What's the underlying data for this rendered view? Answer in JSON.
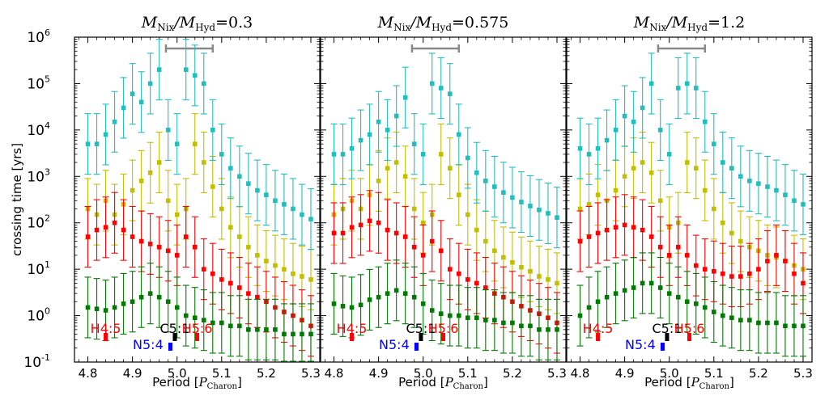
{
  "chart_data": {
    "type": "scatter",
    "ylabel": "crossing time [yrs]",
    "yscale": "log",
    "ylim": [
      0.1,
      1000000
    ],
    "ytick_labels": [
      {
        "base": "10",
        "exp": "-1"
      },
      {
        "base": "10",
        "exp": "0"
      },
      {
        "base": "10",
        "exp": "1"
      },
      {
        "base": "10",
        "exp": "2"
      },
      {
        "base": "10",
        "exp": "3"
      },
      {
        "base": "10",
        "exp": "4"
      },
      {
        "base": "10",
        "exp": "5"
      },
      {
        "base": "10",
        "exp": "6"
      }
    ],
    "xlim": [
      4.77,
      5.32
    ],
    "xticks": [
      4.8,
      4.9,
      5.0,
      5.1,
      5.2,
      5.3
    ],
    "xtick_labels": [
      "4.8",
      "4.9",
      "5.0",
      "5.1",
      "5.2",
      "5.3"
    ],
    "xlabel_text": "Period [",
    "xlabel_sym": "P",
    "xlabel_sub": "Charon",
    "xlabel_close": "]",
    "grid": false,
    "legend": "none",
    "series_colors": [
      "#c0bf00",
      "#22bdbd",
      "#ff0000",
      "#007a00"
    ],
    "panels": [
      {
        "title_pre": "M",
        "title_sub1": "Nix",
        "title_mid": "/M",
        "title_sub2": "Hyd",
        "title_val": "=0.3",
        "bracket": [
          4.975,
          5.08
        ],
        "series": [
          {
            "color": "#c0bf00",
            "x": [
              4.8,
              4.82,
              4.84,
              4.86,
              4.88,
              4.9,
              4.92,
              4.94,
              4.96,
              4.98,
              5.0,
              5.02,
              5.04,
              5.06,
              5.08,
              5.1,
              5.12,
              5.14,
              5.16,
              5.18,
              5.2,
              5.22,
              5.24,
              5.26,
              5.28,
              5.3
            ],
            "y": [
              200,
              150,
              300,
              150,
              250,
              500,
              800,
              1200,
              2000,
              300,
              150,
              200,
              5000,
              2000,
              600,
              200,
              80,
              50,
              30,
              20,
              15,
              12,
              10,
              8,
              7,
              6
            ]
          },
          {
            "color": "#22bdbd",
            "x": [
              4.8,
              4.82,
              4.84,
              4.86,
              4.88,
              4.9,
              4.92,
              4.94,
              4.96,
              4.98,
              5.0,
              5.02,
              5.04,
              5.06,
              5.08,
              5.1,
              5.12,
              5.14,
              5.16,
              5.18,
              5.2,
              5.22,
              5.24,
              5.26,
              5.28,
              5.3
            ],
            "y": [
              5000,
              5000,
              8000,
              15000,
              30000,
              60000,
              40000,
              100000,
              200000,
              10000,
              5000,
              200000,
              150000,
              100000,
              10000,
              3000,
              1500,
              1000,
              700,
              500,
              400,
              300,
              250,
              200,
              150,
              120
            ]
          },
          {
            "color": "#ff0000",
            "x": [
              4.8,
              4.82,
              4.84,
              4.86,
              4.88,
              4.9,
              4.92,
              4.94,
              4.96,
              4.98,
              5.0,
              5.02,
              5.04,
              5.06,
              5.08,
              5.1,
              5.12,
              5.14,
              5.16,
              5.18,
              5.2,
              5.22,
              5.24,
              5.26,
              5.28,
              5.3
            ],
            "y": [
              50,
              70,
              80,
              100,
              70,
              50,
              40,
              35,
              30,
              25,
              20,
              50,
              30,
              10,
              8,
              6,
              5,
              4,
              3,
              2.5,
              2,
              1.5,
              1.2,
              1,
              0.8,
              0.6
            ]
          },
          {
            "color": "#007a00",
            "x": [
              4.8,
              4.82,
              4.84,
              4.86,
              4.88,
              4.9,
              4.92,
              4.94,
              4.96,
              4.98,
              5.0,
              5.02,
              5.04,
              5.06,
              5.08,
              5.1,
              5.12,
              5.14,
              5.16,
              5.18,
              5.2,
              5.22,
              5.24,
              5.26,
              5.28,
              5.3
            ],
            "y": [
              1.5,
              1.4,
              1.3,
              1.5,
              1.8,
              2.0,
              2.5,
              3.0,
              2.5,
              2.0,
              1.5,
              1.0,
              0.9,
              0.8,
              0.7,
              0.7,
              0.6,
              0.6,
              0.5,
              0.5,
              0.5,
              0.5,
              0.4,
              0.4,
              0.4,
              0.4
            ]
          }
        ],
        "markers": [
          {
            "label": "H4:5",
            "color": "#ff0000",
            "tick_x": 4.84,
            "tick_color": "#ff0000",
            "row": 1,
            "label_x": 4.84
          },
          {
            "label": "C5:1",
            "color": "#000000",
            "tick_x": 4.995,
            "tick_color": "#000000",
            "row": 1,
            "label_x": 4.995
          },
          {
            "label": "H5:6",
            "color": "#ff0000",
            "tick_x": 5.045,
            "tick_color": "#ff0000",
            "row": 1,
            "label_x": 5.045
          },
          {
            "label": "N5:4",
            "color": "#0000ff",
            "tick_x": 4.985,
            "tick_color": "#0000ff",
            "row": 2,
            "label_x": 4.935
          }
        ]
      },
      {
        "title_pre": "M",
        "title_sub1": "Nix",
        "title_mid": "/M",
        "title_sub2": "Hyd",
        "title_val": "=0.575",
        "bracket": [
          4.975,
          5.08
        ],
        "series": [
          {
            "color": "#c0bf00",
            "x": [
              4.8,
              4.82,
              4.84,
              4.86,
              4.88,
              4.9,
              4.92,
              4.94,
              4.96,
              4.98,
              5.0,
              5.02,
              5.04,
              5.06,
              5.08,
              5.1,
              5.12,
              5.14,
              5.16,
              5.18,
              5.2,
              5.22,
              5.24,
              5.26,
              5.28,
              5.3
            ],
            "y": [
              150,
              200,
              300,
              200,
              400,
              800,
              1500,
              2000,
              1000,
              200,
              100,
              150,
              3000,
              1500,
              400,
              150,
              70,
              40,
              25,
              18,
              14,
              11,
              9,
              7,
              6,
              5
            ]
          },
          {
            "color": "#22bdbd",
            "x": [
              4.8,
              4.82,
              4.84,
              4.86,
              4.88,
              4.9,
              4.92,
              4.94,
              4.96,
              4.98,
              5.0,
              5.02,
              5.04,
              5.06,
              5.08,
              5.1,
              5.12,
              5.14,
              5.16,
              5.18,
              5.2,
              5.22,
              5.24,
              5.26,
              5.28,
              5.3
            ],
            "y": [
              3000,
              3000,
              4000,
              6000,
              8000,
              15000,
              10000,
              20000,
              50000,
              5000,
              3000,
              100000,
              80000,
              60000,
              8000,
              2500,
              1200,
              800,
              600,
              450,
              350,
              280,
              230,
              190,
              160,
              130
            ]
          },
          {
            "color": "#ff0000",
            "x": [
              4.8,
              4.82,
              4.84,
              4.86,
              4.88,
              4.9,
              4.92,
              4.94,
              4.96,
              4.98,
              5.0,
              5.02,
              5.04,
              5.06,
              5.08,
              5.1,
              5.12,
              5.14,
              5.16,
              5.18,
              5.2,
              5.22,
              5.24,
              5.26,
              5.28,
              5.3
            ],
            "y": [
              60,
              60,
              80,
              90,
              110,
              100,
              70,
              60,
              50,
              30,
              20,
              40,
              25,
              10,
              8,
              6,
              5,
              4,
              3,
              2.5,
              2,
              1.6,
              1.3,
              1.1,
              0.9,
              0.7
            ]
          },
          {
            "color": "#007a00",
            "x": [
              4.8,
              4.82,
              4.84,
              4.86,
              4.88,
              4.9,
              4.92,
              4.94,
              4.96,
              4.98,
              5.0,
              5.02,
              5.04,
              5.06,
              5.08,
              5.1,
              5.12,
              5.14,
              5.16,
              5.18,
              5.2,
              5.22,
              5.24,
              5.26,
              5.28,
              5.3
            ],
            "y": [
              1.8,
              1.6,
              1.5,
              1.7,
              2.2,
              2.5,
              3.0,
              3.5,
              3.0,
              2.5,
              1.8,
              1.3,
              1.1,
              1.0,
              1.0,
              0.9,
              0.9,
              0.8,
              0.8,
              0.7,
              0.7,
              0.6,
              0.6,
              0.5,
              0.5,
              0.5
            ]
          }
        ],
        "markers": [
          {
            "label": "H4:5",
            "color": "#ff0000",
            "tick_x": 4.84,
            "tick_color": "#ff0000",
            "row": 1,
            "label_x": 4.84
          },
          {
            "label": "C5:1",
            "color": "#000000",
            "tick_x": 4.995,
            "tick_color": "#000000",
            "row": 1,
            "label_x": 4.995
          },
          {
            "label": "H5:6",
            "color": "#ff0000",
            "tick_x": 5.045,
            "tick_color": "#ff0000",
            "row": 1,
            "label_x": 5.045
          },
          {
            "label": "N5:4",
            "color": "#0000ff",
            "tick_x": 4.985,
            "tick_color": "#0000ff",
            "row": 2,
            "label_x": 4.935
          }
        ]
      },
      {
        "title_pre": "M",
        "title_sub1": "Nix",
        "title_mid": "/M",
        "title_sub2": "Hyd",
        "title_val": "=1.2",
        "bracket": [
          4.975,
          5.08
        ],
        "series": [
          {
            "color": "#c0bf00",
            "x": [
              4.8,
              4.82,
              4.84,
              4.86,
              4.88,
              4.9,
              4.92,
              4.94,
              4.96,
              4.98,
              5.0,
              5.02,
              5.04,
              5.06,
              5.08,
              5.1,
              5.12,
              5.14,
              5.16,
              5.18,
              5.2,
              5.22,
              5.24,
              5.26,
              5.28,
              5.3
            ],
            "y": [
              200,
              250,
              400,
              300,
              500,
              1000,
              1500,
              2000,
              1200,
              300,
              80,
              100,
              2000,
              1500,
              500,
              200,
              100,
              60,
              40,
              30,
              25,
              20,
              18,
              15,
              12,
              10
            ]
          },
          {
            "color": "#22bdbd",
            "x": [
              4.8,
              4.82,
              4.84,
              4.86,
              4.88,
              4.9,
              4.92,
              4.94,
              4.96,
              4.98,
              5.0,
              5.02,
              5.04,
              5.06,
              5.08,
              5.1,
              5.12,
              5.14,
              5.16,
              5.18,
              5.2,
              5.22,
              5.24,
              5.26,
              5.28,
              5.3
            ],
            "y": [
              4000,
              3000,
              4000,
              6000,
              10000,
              20000,
              15000,
              30000,
              100000,
              10000,
              3000,
              80000,
              100000,
              80000,
              15000,
              5000,
              2000,
              1500,
              1000,
              800,
              700,
              600,
              500,
              400,
              300,
              250
            ]
          },
          {
            "color": "#ff0000",
            "x": [
              4.8,
              4.82,
              4.84,
              4.86,
              4.88,
              4.9,
              4.92,
              4.94,
              4.96,
              4.98,
              5.0,
              5.02,
              5.04,
              5.06,
              5.08,
              5.1,
              5.12,
              5.14,
              5.16,
              5.18,
              5.2,
              5.22,
              5.24,
              5.26,
              5.28,
              5.3
            ],
            "y": [
              40,
              50,
              60,
              70,
              80,
              90,
              80,
              70,
              50,
              30,
              20,
              30,
              20,
              12,
              10,
              9,
              8,
              7,
              7,
              8,
              10,
              15,
              20,
              15,
              8,
              5
            ]
          },
          {
            "color": "#007a00",
            "x": [
              4.8,
              4.82,
              4.84,
              4.86,
              4.88,
              4.9,
              4.92,
              4.94,
              4.96,
              4.98,
              5.0,
              5.02,
              5.04,
              5.06,
              5.08,
              5.1,
              5.12,
              5.14,
              5.16,
              5.18,
              5.2,
              5.22,
              5.24,
              5.26,
              5.28,
              5.3
            ],
            "y": [
              1.0,
              1.5,
              2.0,
              2.5,
              3.0,
              3.5,
              4.0,
              5.0,
              5.0,
              4.0,
              3.0,
              2.5,
              2.0,
              1.8,
              1.5,
              1.2,
              1.0,
              0.9,
              0.8,
              0.8,
              0.7,
              0.7,
              0.7,
              0.6,
              0.6,
              0.6
            ]
          }
        ],
        "markers": [
          {
            "label": "H4:5",
            "color": "#ff0000",
            "tick_x": 4.84,
            "tick_color": "#ff0000",
            "row": 1,
            "label_x": 4.84
          },
          {
            "label": "C5:1",
            "color": "#000000",
            "tick_x": 4.995,
            "tick_color": "#000000",
            "row": 1,
            "label_x": 4.995
          },
          {
            "label": "H5:6",
            "color": "#ff0000",
            "tick_x": 5.045,
            "tick_color": "#ff0000",
            "row": 1,
            "label_x": 5.045
          },
          {
            "label": "N5:4",
            "color": "#0000ff",
            "tick_x": 4.985,
            "tick_color": "#0000ff",
            "row": 2,
            "label_x": 4.935
          }
        ]
      }
    ]
  }
}
